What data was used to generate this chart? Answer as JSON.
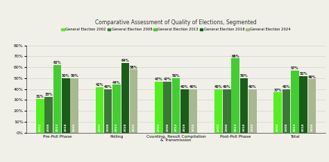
{
  "title": "Comparative Assessment of Quality of Elections, Segmented",
  "categories": [
    "Pre-Poll Phase",
    "Polling",
    "Counting, Result Compilation\n& Transmission",
    "Post-Poll Phase",
    "Total"
  ],
  "years": [
    "2002",
    "2008",
    "2013",
    "2018",
    "2024"
  ],
  "values_all": [
    [
      31,
      33,
      62,
      50,
      50
    ],
    [
      42,
      40,
      44,
      64,
      58
    ],
    [
      47,
      47,
      50,
      40,
      40
    ],
    [
      40,
      40,
      68,
      50,
      40
    ],
    [
      37,
      40,
      57,
      52,
      49
    ]
  ],
  "bar_colors": [
    "#55ee22",
    "#3a7a35",
    "#44cc33",
    "#1a5c1a",
    "#a8b890"
  ],
  "ylim": [
    0,
    80
  ],
  "yticks": [
    0,
    10,
    20,
    30,
    40,
    50,
    60,
    70,
    80
  ],
  "ytick_labels": [
    "0%",
    "10%",
    "20%",
    "30%",
    "40%",
    "50%",
    "60%",
    "70%",
    "80%"
  ],
  "background_color": "#f0f0e8",
  "grid_color": "#cccccc",
  "title_fontsize": 5.5,
  "legend_fontsize": 3.8,
  "label_fontsize": 3.5,
  "year_label_fontsize": 3.2,
  "xtick_fontsize": 4.2
}
